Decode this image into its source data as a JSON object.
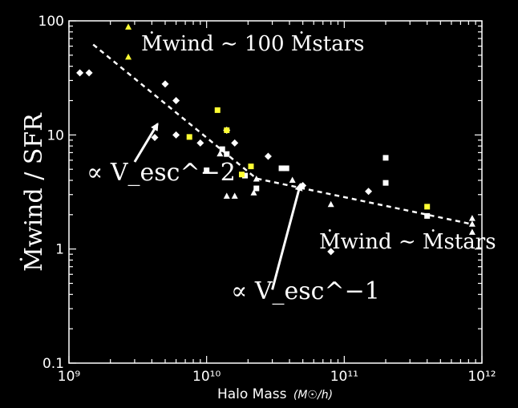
{
  "chart_data": {
    "type": "scatter",
    "xscale": "log",
    "yscale": "log",
    "xlim": [
      1000000000,
      1000000000000
    ],
    "ylim": [
      0.1,
      100
    ],
    "xlabel": "Halo Mass",
    "xlabel_unit": "(M☉/h)",
    "ylabel": "Ṁwind / SFR",
    "x_ticks": [
      {
        "value": 1000000000,
        "label": "10⁹"
      },
      {
        "value": 10000000000,
        "label": "10¹⁰"
      },
      {
        "value": 100000000000,
        "label": "10¹¹"
      },
      {
        "value": 1000000000000,
        "label": "10¹²"
      }
    ],
    "y_ticks": [
      {
        "value": 100,
        "label": "100"
      },
      {
        "value": 10,
        "label": "10"
      },
      {
        "value": 1,
        "label": "1"
      },
      {
        "value": 0.1,
        "label": "0.1"
      }
    ],
    "colors": {
      "background": "#000000",
      "foreground": "#ffffff",
      "highlight": "#ffff33"
    },
    "series": [
      {
        "marker": "diamond",
        "color": "#ffffff",
        "points": [
          [
            1200000000,
            35
          ],
          [
            1400000000,
            35
          ],
          [
            4200000000,
            9.5
          ],
          [
            5000000000,
            28
          ],
          [
            6000000000,
            20
          ],
          [
            6000000000,
            10
          ],
          [
            9000000000,
            8.5
          ],
          [
            14000000000,
            11
          ],
          [
            16000000000,
            8.5
          ],
          [
            28000000000,
            6.5
          ],
          [
            50000000000,
            3.6
          ],
          [
            80000000000,
            0.95
          ],
          [
            150000000000,
            3.2
          ]
        ]
      },
      {
        "marker": "square",
        "color": "#ffffff",
        "points": [
          [
            10000000000,
            4.9
          ],
          [
            13000000000,
            7.5
          ],
          [
            14000000000,
            6.8
          ],
          [
            19000000000,
            4.4
          ],
          [
            23000000000,
            3.4
          ],
          [
            35000000000,
            5.1
          ],
          [
            38000000000,
            5.1
          ],
          [
            200000000000,
            6.3
          ],
          [
            200000000000,
            3.8
          ],
          [
            400000000000,
            1.95
          ]
        ]
      },
      {
        "marker": "square",
        "color": "#ffff33",
        "points": [
          [
            7500000000,
            9.6
          ],
          [
            12000000000,
            16.5
          ],
          [
            14000000000,
            11
          ],
          [
            18000000000,
            4.5
          ],
          [
            21000000000,
            5.3
          ],
          [
            400000000000,
            2.35
          ]
        ]
      },
      {
        "marker": "triangle",
        "color": "#ffffff",
        "points": [
          [
            12500000000,
            6.8
          ],
          [
            14000000000,
            2.9
          ],
          [
            16000000000,
            2.9
          ],
          [
            22000000000,
            3.1
          ],
          [
            23000000000,
            4.1
          ],
          [
            42000000000,
            4.0
          ],
          [
            80000000000,
            2.45
          ],
          [
            850000000000,
            1.85
          ],
          [
            850000000000,
            1.65
          ],
          [
            850000000000,
            1.4
          ]
        ]
      },
      {
        "marker": "triangle",
        "color": "#ffff33",
        "points": [
          [
            2700000000,
            88
          ],
          [
            2700000000,
            48
          ]
        ]
      }
    ],
    "fit_line": {
      "style": "dashed",
      "points": [
        [
          1500000000,
          62
        ],
        [
          23000000000,
          4.15
        ],
        [
          850000000000,
          1.65
        ]
      ]
    },
    "annotations": [
      {
        "text": "Ṁwind ∼ 100 Ṁstars",
        "position": "top"
      },
      {
        "text": "∝ V_esc^−2",
        "position": "left",
        "arrow_from": [
          3000000000,
          5.8
        ],
        "arrow_to": [
          4400000000,
          12.5
        ]
      },
      {
        "text": "∝ V_esc^−1",
        "position": "bottom-center",
        "arrow_from": [
          30000000000,
          0.44
        ],
        "arrow_to": [
          48000000000,
          3.7
        ]
      },
      {
        "text": "Ṁwind ∼ Ṁstars",
        "position": "bottom-right"
      }
    ]
  }
}
